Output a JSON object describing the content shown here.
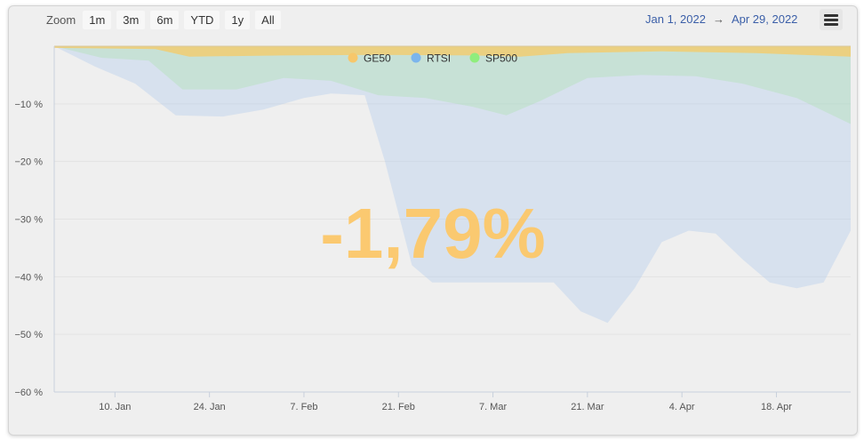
{
  "toolbar": {
    "zoom_label": "Zoom",
    "buttons": [
      "1m",
      "3m",
      "6m",
      "YTD",
      "1y",
      "All"
    ]
  },
  "range": {
    "from": "Jan 1, 2022",
    "arrow": "→",
    "to": "Apr 29, 2022"
  },
  "overlay_text": "-1,79%",
  "colors": {
    "GE50": "#f7c76b",
    "RTSI": "#7cb5ec",
    "SP500": "#90ed7d",
    "overlay": "#fcc86a"
  },
  "chart_data": {
    "type": "area",
    "x_start": "2022-01-01",
    "x_end": "2022-04-29",
    "yunit": "%",
    "ylim": [
      -60,
      0
    ],
    "yticks": [
      -10,
      -20,
      -30,
      -40,
      -50,
      -60
    ],
    "ytick_labels": [
      "−10 %",
      "−20 %",
      "−30 %",
      "−40 %",
      "−50 %",
      "−60 %"
    ],
    "xtick_dates": [
      "2022-01-10",
      "2022-01-24",
      "2022-02-07",
      "2022-02-21",
      "2022-03-07",
      "2022-03-21",
      "2022-04-04",
      "2022-04-18"
    ],
    "xtick_labels": [
      "10. Jan",
      "24. Jan",
      "7. Feb",
      "21. Feb",
      "7. Mar",
      "21. Mar",
      "4. Apr",
      "18. Apr"
    ],
    "grid": true,
    "legend_position": "top-center",
    "series": [
      {
        "name": "RTSI",
        "points": [
          [
            "2022-01-01",
            0
          ],
          [
            "2022-01-07",
            -3.5
          ],
          [
            "2022-01-13",
            -6.5
          ],
          [
            "2022-01-19",
            -12
          ],
          [
            "2022-01-26",
            -12.2
          ],
          [
            "2022-02-01",
            -11
          ],
          [
            "2022-02-07",
            -9
          ],
          [
            "2022-02-11",
            -8.2
          ],
          [
            "2022-02-16",
            -8.5
          ],
          [
            "2022-02-19",
            -20
          ],
          [
            "2022-02-23",
            -38
          ],
          [
            "2022-02-26",
            -41
          ],
          [
            "2022-03-04",
            -41
          ],
          [
            "2022-03-11",
            -41
          ],
          [
            "2022-03-16",
            -41
          ],
          [
            "2022-03-20",
            -46
          ],
          [
            "2022-03-24",
            -48
          ],
          [
            "2022-03-28",
            -42
          ],
          [
            "2022-04-01",
            -34
          ],
          [
            "2022-04-05",
            -32
          ],
          [
            "2022-04-09",
            -32.5
          ],
          [
            "2022-04-13",
            -37
          ],
          [
            "2022-04-17",
            -41
          ],
          [
            "2022-04-21",
            -42
          ],
          [
            "2022-04-25",
            -41
          ],
          [
            "2022-04-29",
            -32
          ]
        ]
      },
      {
        "name": "SP500",
        "points": [
          [
            "2022-01-01",
            0
          ],
          [
            "2022-01-08",
            -2
          ],
          [
            "2022-01-15",
            -2.5
          ],
          [
            "2022-01-20",
            -7.5
          ],
          [
            "2022-01-28",
            -7.5
          ],
          [
            "2022-02-04",
            -5.5
          ],
          [
            "2022-02-11",
            -6
          ],
          [
            "2022-02-18",
            -8.5
          ],
          [
            "2022-02-25",
            -9
          ],
          [
            "2022-03-04",
            -10.5
          ],
          [
            "2022-03-09",
            -12
          ],
          [
            "2022-03-14",
            -9.5
          ],
          [
            "2022-03-21",
            -5.5
          ],
          [
            "2022-03-29",
            -5
          ],
          [
            "2022-04-06",
            -5.2
          ],
          [
            "2022-04-13",
            -6.5
          ],
          [
            "2022-04-21",
            -9
          ],
          [
            "2022-04-29",
            -13.5
          ]
        ]
      },
      {
        "name": "GE50",
        "points": [
          [
            "2022-01-01",
            -0.3
          ],
          [
            "2022-01-10",
            -0.4
          ],
          [
            "2022-01-16",
            -0.5
          ],
          [
            "2022-01-21",
            -1.8
          ],
          [
            "2022-02-04",
            -1.6
          ],
          [
            "2022-02-18",
            -1.5
          ],
          [
            "2022-03-04",
            -1.6
          ],
          [
            "2022-03-11",
            -1.8
          ],
          [
            "2022-03-18",
            -1.2
          ],
          [
            "2022-04-01",
            -0.9
          ],
          [
            "2022-04-15",
            -1.2
          ],
          [
            "2022-04-29",
            -1.8
          ]
        ]
      }
    ]
  }
}
